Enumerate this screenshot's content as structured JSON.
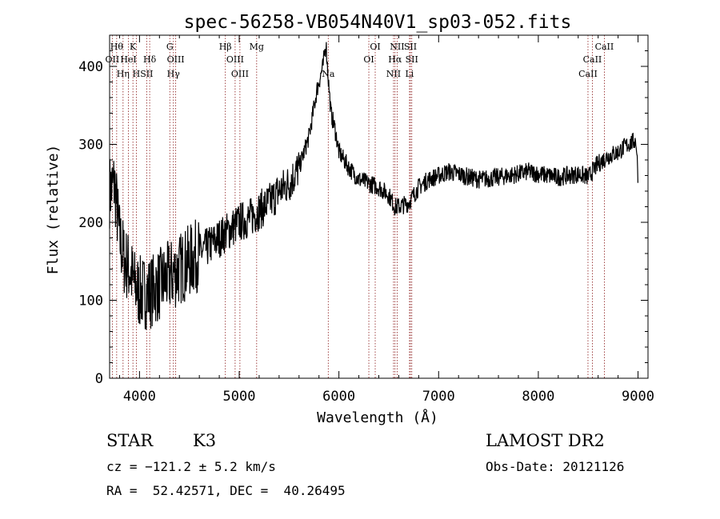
{
  "chart_data": {
    "type": "line",
    "title": "spec-56258-VB054N40V1_sp03-052.fits",
    "xlabel": "Wavelength (Å)",
    "ylabel": "Flux (relative)",
    "xlim": [
      3700,
      9100
    ],
    "ylim": [
      0,
      440
    ],
    "xticks": [
      4000,
      5000,
      6000,
      7000,
      8000,
      9000
    ],
    "yticks": [
      0,
      100,
      200,
      300,
      400
    ],
    "grid": false,
    "line_color": "#000000",
    "marker_color": "#8b1a1a",
    "series": [
      {
        "x": [
          3700,
          3750,
          3800,
          3850,
          3900,
          3950,
          4000,
          4100,
          4200,
          4300,
          4400,
          4500,
          4600,
          4700,
          4800,
          4900,
          5000,
          5100,
          5200,
          5300,
          5400,
          5500,
          5600,
          5700,
          5780,
          5840,
          5870,
          5890,
          5920,
          5960,
          6000,
          6100,
          6200,
          6300,
          6400,
          6500,
          6560,
          6600,
          6700,
          6800,
          6900,
          7000,
          7100,
          7200,
          7300,
          7400,
          7500,
          7600,
          7700,
          7800,
          7900,
          8000,
          8100,
          8200,
          8300,
          8400,
          8500,
          8600,
          8700,
          8800,
          8900,
          8980,
          9000
        ],
        "y": [
          240,
          250,
          180,
          150,
          140,
          120,
          110,
          110,
          120,
          130,
          140,
          150,
          160,
          170,
          180,
          190,
          200,
          205,
          215,
          225,
          240,
          250,
          270,
          310,
          370,
          400,
          430,
          390,
          340,
          320,
          290,
          270,
          255,
          250,
          245,
          235,
          220,
          220,
          225,
          245,
          255,
          260,
          265,
          262,
          258,
          255,
          256,
          258,
          260,
          262,
          265,
          262,
          260,
          258,
          260,
          262,
          258,
          275,
          285,
          290,
          300,
          305,
          260
        ]
      }
    ],
    "line_markers": [
      {
        "wl": 3771,
        "label": "Hθ",
        "row": 0
      },
      {
        "wl": 3727,
        "label": "OII",
        "row": 1
      },
      {
        "wl": 3835,
        "label": "Hη",
        "row": 2
      },
      {
        "wl": 3889,
        "label": "HeI",
        "row": 1
      },
      {
        "wl": 3934,
        "label": "K",
        "row": 0
      },
      {
        "wl": 3968,
        "label": "H",
        "row": 2
      },
      {
        "wl": 4102,
        "label": "Hδ",
        "row": 1
      },
      {
        "wl": 4072,
        "label": "SII",
        "row": 2
      },
      {
        "wl": 4304,
        "label": "G",
        "row": 0
      },
      {
        "wl": 4363,
        "label": "OIII",
        "row": 1
      },
      {
        "wl": 4340,
        "label": "Hγ",
        "row": 2
      },
      {
        "wl": 4861,
        "label": "Hβ",
        "row": 0
      },
      {
        "wl": 4959,
        "label": "OIII",
        "row": 1
      },
      {
        "wl": 5007,
        "label": "OIII",
        "row": 2
      },
      {
        "wl": 5175,
        "label": "Mg",
        "row": 0
      },
      {
        "wl": 5893,
        "label": "Na",
        "row": 2
      },
      {
        "wl": 6300,
        "label": "OI",
        "row": 1
      },
      {
        "wl": 6364,
        "label": "OI",
        "row": 0
      },
      {
        "wl": 6548,
        "label": "NII",
        "row": 2
      },
      {
        "wl": 6563,
        "label": "Hα",
        "row": 1
      },
      {
        "wl": 6584,
        "label": "NII",
        "row": 0
      },
      {
        "wl": 6708,
        "label": "Li",
        "row": 2
      },
      {
        "wl": 6717,
        "label": "SII",
        "row": 0
      },
      {
        "wl": 6731,
        "label": "SII",
        "row": 1
      },
      {
        "wl": 8498,
        "label": "CaII",
        "row": 2
      },
      {
        "wl": 8542,
        "label": "CaII",
        "row": 1
      },
      {
        "wl": 8662,
        "label": "CaII",
        "row": 0
      }
    ]
  },
  "info": {
    "object_class": "STAR",
    "subclass": "K3",
    "survey": "LAMOST DR2",
    "cz": "cz = −121.2 ± 5.2 km/s",
    "obs_date": "Obs-Date: 20121126",
    "coords": "RA =  52.42571, DEC =  40.26495"
  }
}
